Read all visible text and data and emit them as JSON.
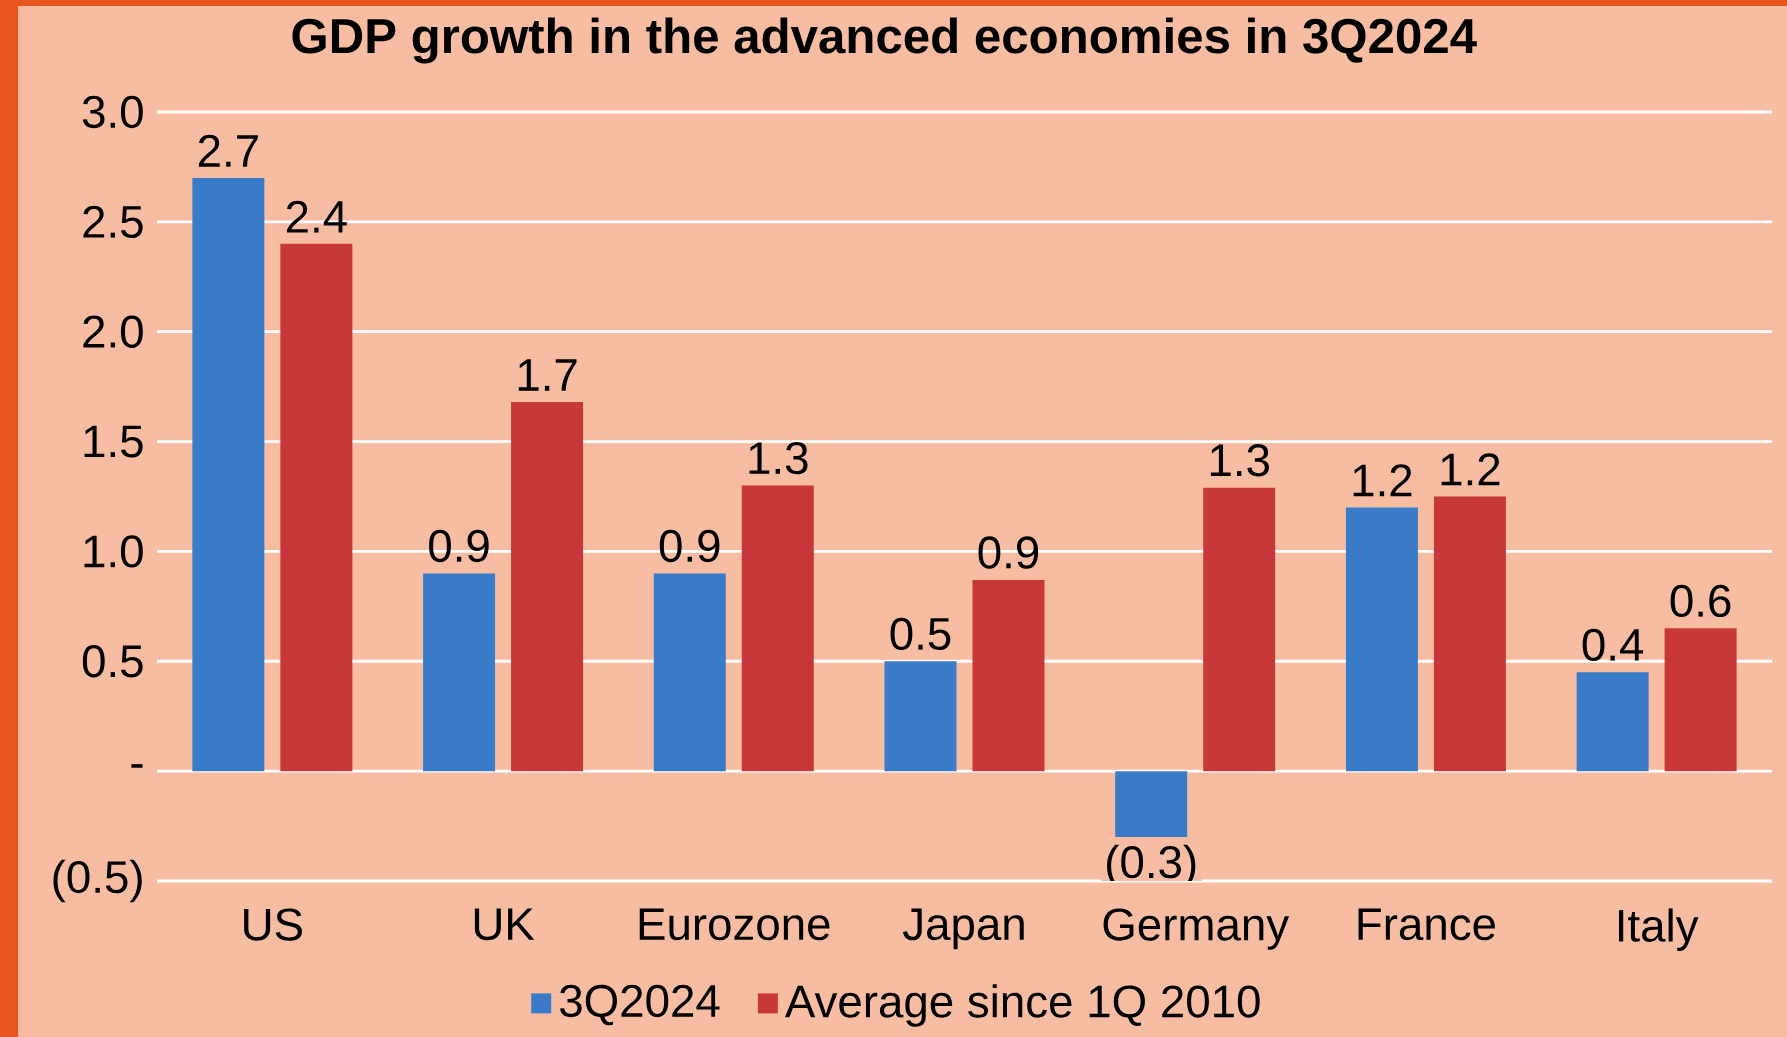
{
  "chart_data": {
    "type": "bar",
    "title": "GDP growth in the advanced economies in 3Q2024",
    "categories": [
      "US",
      "UK",
      "Eurozone",
      "Japan",
      "Germany",
      "France",
      "Italy"
    ],
    "series": [
      {
        "name": "3Q2024",
        "color": "#3a7bc8",
        "values": [
          2.7,
          0.9,
          0.9,
          0.5,
          -0.3,
          1.2,
          0.45
        ],
        "value_labels": [
          "2.7",
          "0.9",
          "0.9",
          "0.5",
          "(0.3)",
          "1.2",
          "0.4"
        ]
      },
      {
        "name": "Average since 1Q 2010",
        "color": "#c8373a",
        "values": [
          2.4,
          1.68,
          1.3,
          0.87,
          1.29,
          1.25,
          0.65
        ],
        "value_labels": [
          "2.4",
          "1.7",
          "1.3",
          "0.9",
          "1.3",
          "1.2",
          "0.6"
        ]
      }
    ],
    "ylim": [
      -0.5,
      3.0
    ],
    "yticks": [
      {
        "value": -0.5,
        "label": "(0.5)"
      },
      {
        "value": 0,
        "label": "-"
      },
      {
        "value": 0.5,
        "label": "0.5"
      },
      {
        "value": 1.0,
        "label": "1.0"
      },
      {
        "value": 1.5,
        "label": "1.5"
      },
      {
        "value": 2.0,
        "label": "2.0"
      },
      {
        "value": 2.5,
        "label": "2.5"
      },
      {
        "value": 3.0,
        "label": "3.0"
      }
    ],
    "grid": "y",
    "legend": "bottom"
  }
}
